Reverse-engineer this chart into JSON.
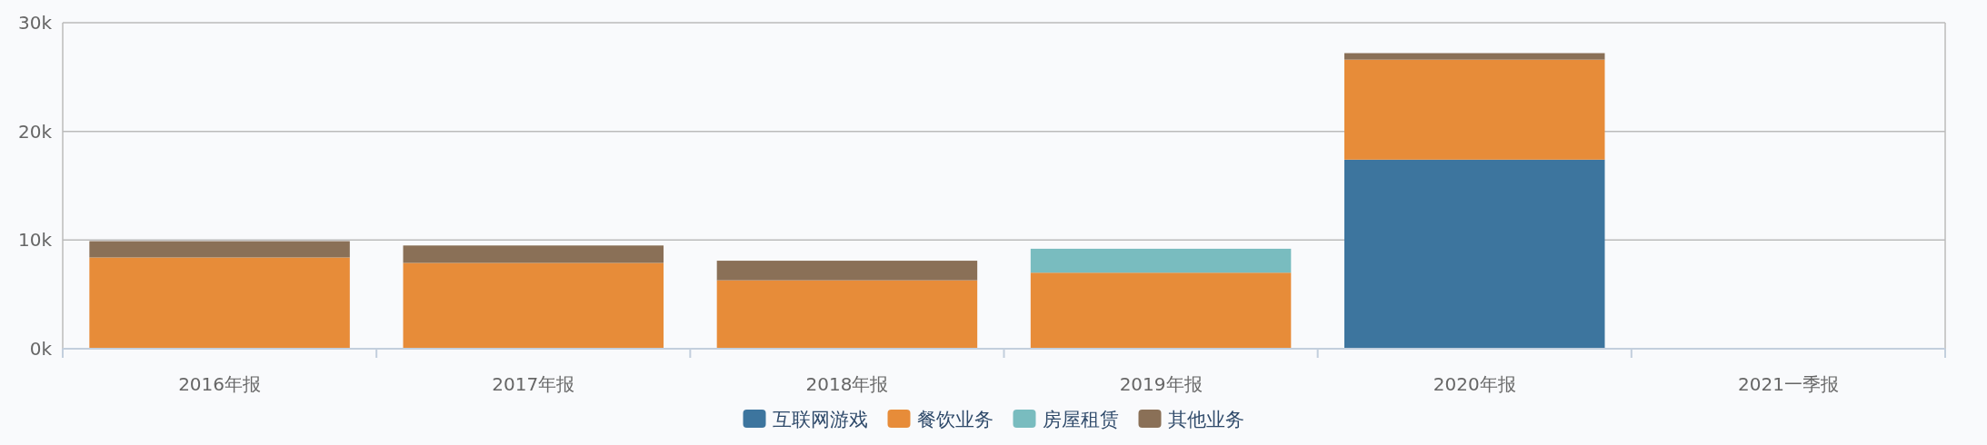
{
  "chart_data": {
    "type": "bar",
    "stacked": true,
    "categories": [
      "2016年报",
      "2017年报",
      "2018年报",
      "2019年报",
      "2020年报",
      "2021一季报"
    ],
    "series": [
      {
        "name": "互联网游戏",
        "color": "#3d759e",
        "values": [
          null,
          null,
          null,
          null,
          17.4,
          null
        ]
      },
      {
        "name": "餐饮业务",
        "color": "#e78c39",
        "values": [
          8.4,
          7.9,
          6.3,
          7.0,
          9.2,
          null
        ]
      },
      {
        "name": "房屋租赁",
        "color": "#79bcbf",
        "values": [
          null,
          null,
          null,
          2.2,
          null,
          null
        ]
      },
      {
        "name": "其他业务",
        "color": "#8a7057",
        "values": [
          1.5,
          1.6,
          1.8,
          null,
          0.6,
          null
        ]
      }
    ],
    "ylim": [
      0,
      30
    ],
    "yticks": [
      {
        "value": 0,
        "label": "0k"
      },
      {
        "value": 10,
        "label": "10k"
      },
      {
        "value": 20,
        "label": "20k"
      },
      {
        "value": 30,
        "label": "30k"
      }
    ],
    "grid": "y",
    "legend": "bottom"
  }
}
